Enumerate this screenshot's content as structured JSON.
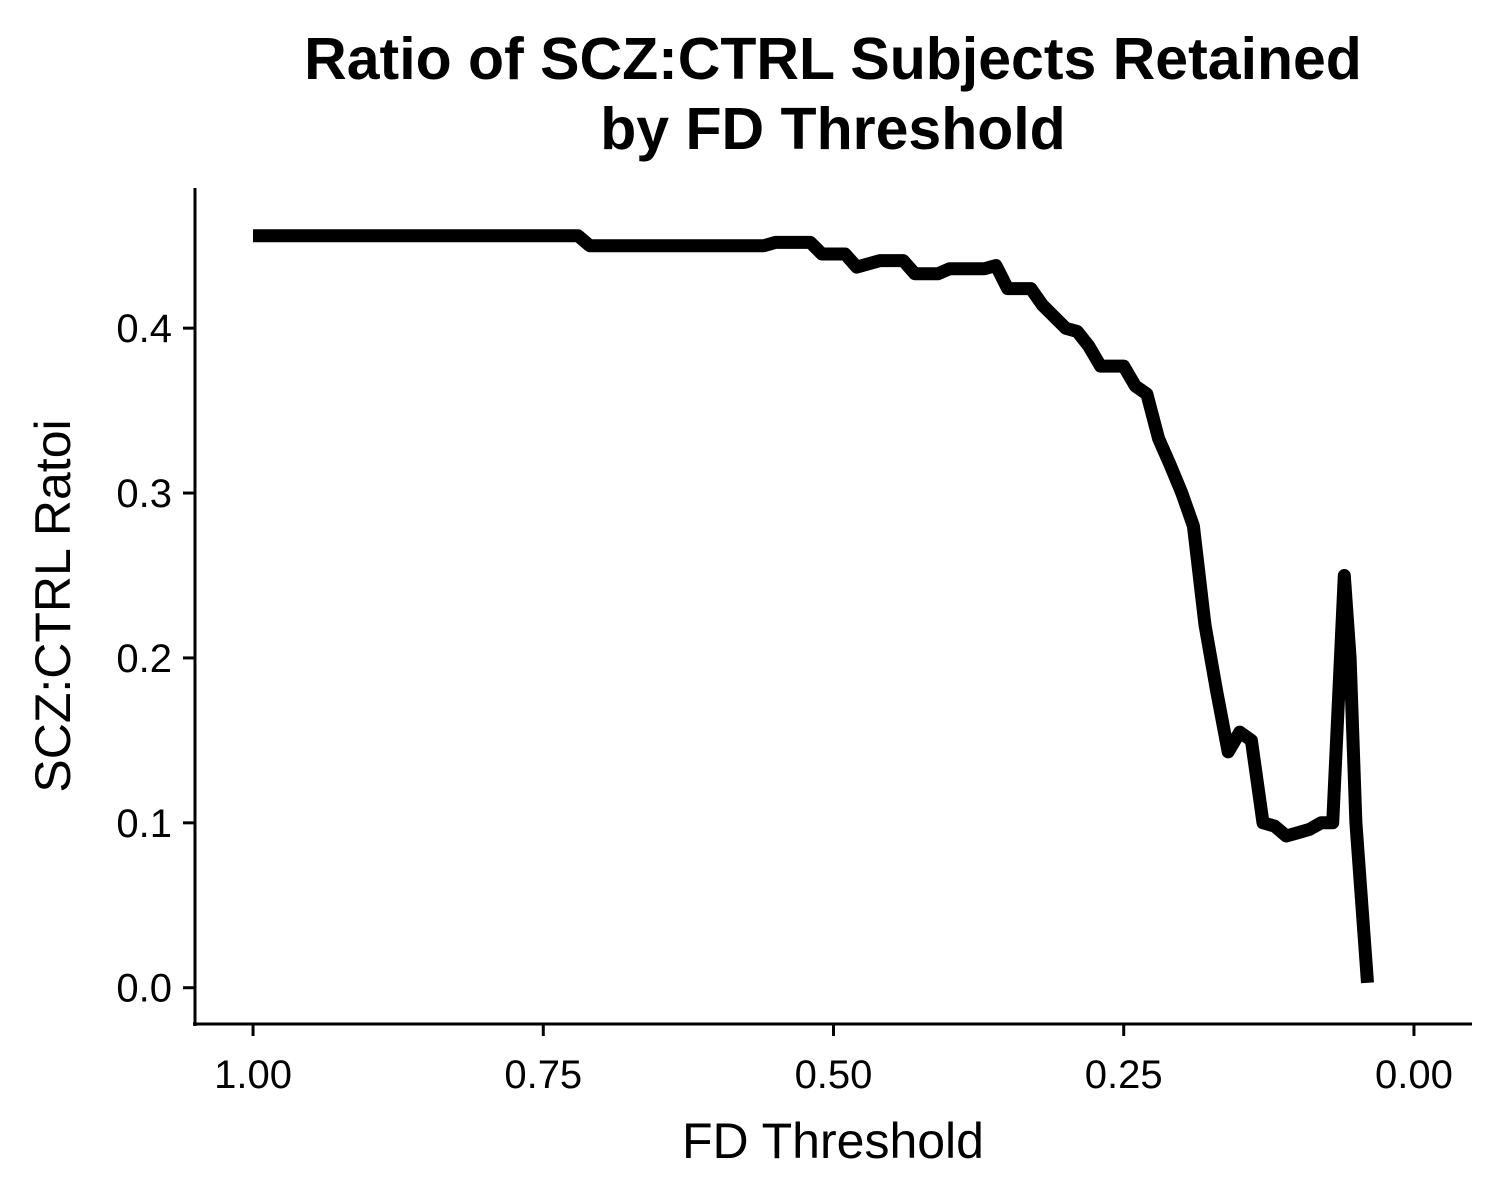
{
  "chart_data": {
    "type": "line",
    "title_lines": [
      "Ratio of SCZ:CTRL Subjects Retained",
      "by FD Threshold"
    ],
    "xlabel": "FD Threshold",
    "ylabel": "SCZ:CTRL Ratoi",
    "x_reversed": true,
    "xlim": [
      1.05,
      -0.05
    ],
    "ylim": [
      -0.022,
      0.485
    ],
    "x_ticks": [
      {
        "value": 1.0,
        "label": "1.00"
      },
      {
        "value": 0.75,
        "label": "0.75"
      },
      {
        "value": 0.5,
        "label": "0.50"
      },
      {
        "value": 0.25,
        "label": "0.25"
      },
      {
        "value": 0.0,
        "label": "0.00"
      }
    ],
    "y_ticks": [
      {
        "value": 0.0,
        "label": "0.0"
      },
      {
        "value": 0.1,
        "label": "0.1"
      },
      {
        "value": 0.2,
        "label": "0.2"
      },
      {
        "value": 0.3,
        "label": "0.3"
      },
      {
        "value": 0.4,
        "label": "0.4"
      }
    ],
    "grid": false,
    "legend": "none",
    "line_color": "#000000",
    "series": [
      {
        "x": [
          1.0,
          0.72,
          0.71,
          0.56,
          0.55,
          0.52,
          0.51,
          0.49,
          0.48,
          0.46,
          0.44,
          0.43,
          0.41,
          0.4,
          0.38,
          0.37,
          0.36,
          0.35,
          0.33,
          0.32,
          0.3,
          0.29,
          0.28,
          0.27,
          0.25,
          0.24,
          0.23,
          0.22,
          0.21,
          0.2,
          0.19,
          0.18,
          0.17,
          0.16,
          0.15,
          0.14,
          0.13,
          0.12,
          0.11,
          0.1,
          0.09,
          0.08,
          0.07,
          0.06,
          0.055,
          0.05,
          0.04
        ],
        "y": [
          0.456,
          0.456,
          0.45,
          0.45,
          0.452,
          0.452,
          0.445,
          0.445,
          0.437,
          0.441,
          0.441,
          0.433,
          0.433,
          0.436,
          0.436,
          0.436,
          0.438,
          0.424,
          0.424,
          0.414,
          0.4,
          0.398,
          0.389,
          0.377,
          0.377,
          0.365,
          0.36,
          0.333,
          0.317,
          0.3,
          0.28,
          0.22,
          0.18,
          0.143,
          0.155,
          0.15,
          0.1,
          0.098,
          0.092,
          0.094,
          0.096,
          0.1,
          0.1,
          0.25,
          0.2,
          0.1,
          0.003
        ]
      }
    ]
  }
}
